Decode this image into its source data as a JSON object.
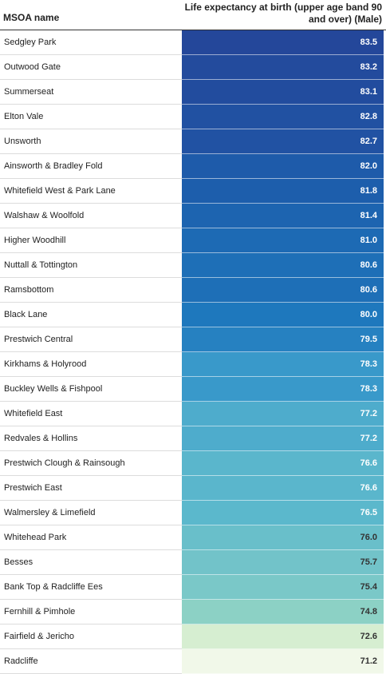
{
  "chart_data": {
    "type": "table",
    "columns": [
      "MSOA name",
      "Life expectancy at birth (upper age band 90 and over) (Male)"
    ],
    "rows": [
      {
        "name": "Sedgley Park",
        "value": "83.5"
      },
      {
        "name": "Outwood Gate",
        "value": "83.2"
      },
      {
        "name": "Summerseat",
        "value": "83.1"
      },
      {
        "name": "Elton Vale",
        "value": "82.8"
      },
      {
        "name": "Unsworth",
        "value": "82.7"
      },
      {
        "name": "Ainsworth & Bradley Fold",
        "value": "82.0"
      },
      {
        "name": "Whitefield West & Park Lane",
        "value": "81.8"
      },
      {
        "name": "Walshaw & Woolfold",
        "value": "81.4"
      },
      {
        "name": "Higher Woodhill",
        "value": "81.0"
      },
      {
        "name": "Nuttall & Tottington",
        "value": "80.6"
      },
      {
        "name": "Ramsbottom",
        "value": "80.6"
      },
      {
        "name": "Black Lane",
        "value": "80.0"
      },
      {
        "name": "Prestwich Central",
        "value": "79.5"
      },
      {
        "name": "Kirkhams & Holyrood",
        "value": "78.3"
      },
      {
        "name": "Buckley Wells & Fishpool",
        "value": "78.3"
      },
      {
        "name": "Whitefield East",
        "value": "77.2"
      },
      {
        "name": "Redvales & Hollins",
        "value": "77.2"
      },
      {
        "name": "Prestwich Clough & Rainsough",
        "value": "76.6"
      },
      {
        "name": "Prestwich East",
        "value": "76.6"
      },
      {
        "name": "Walmersley & Limefield",
        "value": "76.5"
      },
      {
        "name": "Whitehead Park",
        "value": "76.0"
      },
      {
        "name": "Besses",
        "value": "75.7"
      },
      {
        "name": "Bank Top & Radcliffe Ees",
        "value": "75.4"
      },
      {
        "name": "Fernhill & Pimhole",
        "value": "74.8"
      },
      {
        "name": "Fairfield & Jericho",
        "value": "72.6"
      },
      {
        "name": "Radcliffe",
        "value": "71.2"
      }
    ],
    "color_scale": {
      "min": 71.2,
      "max": 83.5,
      "stops": [
        "#f1f8e9",
        "#cfeccb",
        "#8ed2c5",
        "#5cb8cc",
        "#3a9acb",
        "#1e78bd",
        "#1d5fad",
        "#24479a"
      ]
    }
  }
}
